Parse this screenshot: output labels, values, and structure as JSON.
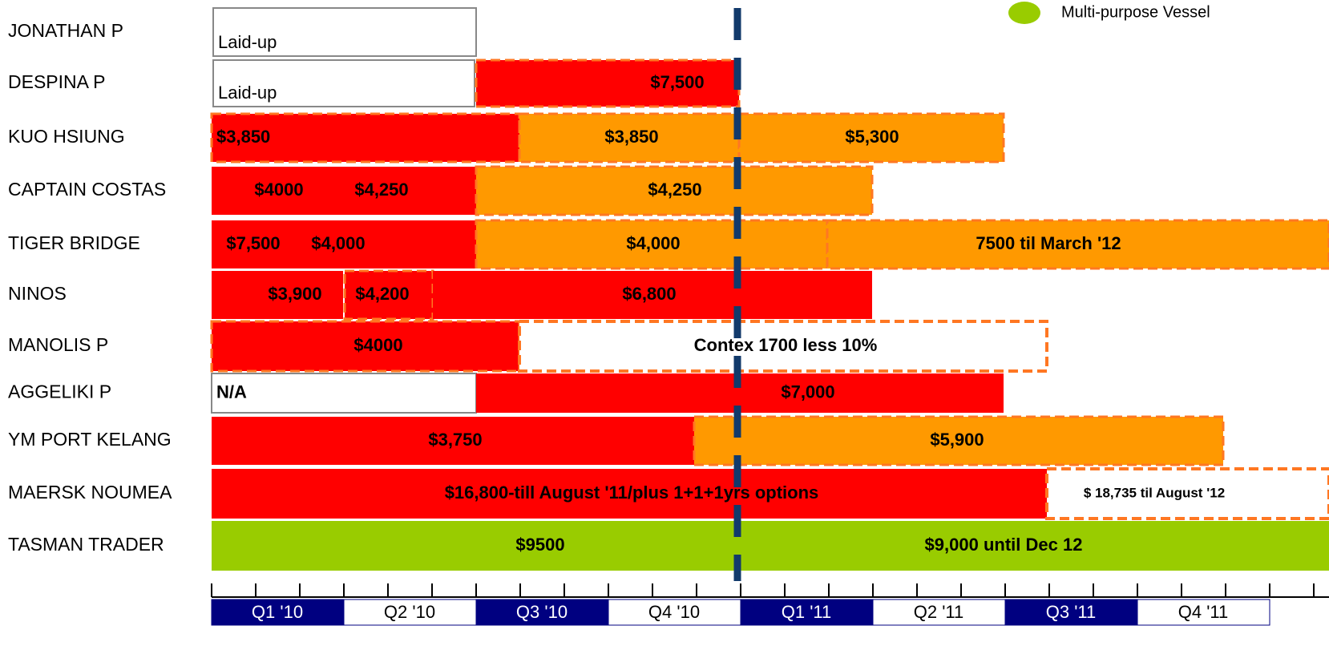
{
  "legend": {
    "label": "Multi-purpose Vessel"
  },
  "vessels": [
    {
      "name": "JONATHAN P",
      "segments": [
        {
          "label": "Laid-up"
        }
      ]
    },
    {
      "name": "DESPINA P",
      "segments": [
        {
          "label": "Laid-up"
        },
        {
          "label": "$7,500"
        }
      ]
    },
    {
      "name": "KUO HSIUNG",
      "segments": [
        {
          "label": "$3,850"
        },
        {
          "label": "$3,850"
        },
        {
          "label": "$5,300"
        }
      ]
    },
    {
      "name": "CAPTAIN COSTAS",
      "segments": [
        {
          "label": "$4000"
        },
        {
          "label": "$4,250"
        },
        {
          "label": "$4,250"
        }
      ]
    },
    {
      "name": "TIGER BRIDGE",
      "segments": [
        {
          "label": "$7,500"
        },
        {
          "label": "$4,000"
        },
        {
          "label": "$4,000"
        },
        {
          "label": "7500 til March '12"
        }
      ]
    },
    {
      "name": "NINOS",
      "segments": [
        {
          "label": "$3,900"
        },
        {
          "label": "$4,200"
        },
        {
          "label": "$6,800"
        }
      ]
    },
    {
      "name": "MANOLIS P",
      "segments": [
        {
          "label": "$4000"
        },
        {
          "label": "Contex 1700 less 10%"
        }
      ]
    },
    {
      "name": "AGGELIKI P",
      "segments": [
        {
          "label": "N/A"
        },
        {
          "label": "$7,000"
        }
      ]
    },
    {
      "name": "YM PORT KELANG",
      "segments": [
        {
          "label": "$3,750"
        },
        {
          "label": "$5,900"
        }
      ]
    },
    {
      "name": "MAERSK NOUMEA",
      "segments": [
        {
          "label": "$16,800-till August '11/plus 1+1+1yrs options"
        },
        {
          "label": "$ 18,735 til August '12"
        }
      ]
    },
    {
      "name": "TASMAN TRADER",
      "segments": [
        {
          "label": "$9500"
        },
        {
          "label": "$9,000 until Dec 12"
        }
      ]
    }
  ],
  "quarters": [
    "Q1 '10",
    "Q2 '10",
    "Q3 '10",
    "Q4 '10",
    "Q1 '11",
    "Q2 '11",
    "Q3 '11",
    "Q4 '11"
  ]
}
